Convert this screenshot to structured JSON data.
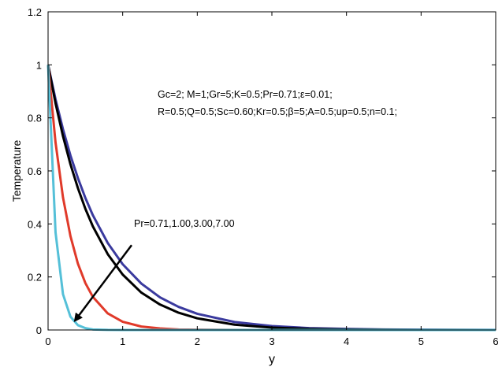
{
  "chart_data": {
    "type": "line",
    "title": "",
    "xlabel": "y",
    "ylabel": "Temperature",
    "xlim": [
      0,
      6
    ],
    "ylim": [
      0,
      1.2
    ],
    "xticks": [
      0,
      1,
      2,
      3,
      4,
      5,
      6
    ],
    "xtick_labels": [
      "0",
      "1",
      "2",
      "3",
      "4",
      "5",
      "6"
    ],
    "yticks": [
      0,
      0.2,
      0.4,
      0.6,
      0.8,
      1.0,
      1.2
    ],
    "ytick_labels": [
      "0",
      "0.2",
      "0.4",
      "0.6",
      "0.8",
      "1",
      "1.2"
    ],
    "grid": false,
    "legend": "none",
    "x": [
      0,
      0.1,
      0.2,
      0.3,
      0.4,
      0.5,
      0.6,
      0.8,
      1.0,
      1.25,
      1.5,
      1.75,
      2.0,
      2.5,
      3.0,
      3.5,
      4.0,
      4.5,
      5.0,
      5.5,
      6.0
    ],
    "series": [
      {
        "color": "#3a3a9e",
        "values": [
          1.0,
          0.87,
          0.757,
          0.658,
          0.573,
          0.498,
          0.433,
          0.328,
          0.248,
          0.175,
          0.123,
          0.087,
          0.061,
          0.03,
          0.015,
          0.007,
          0.004,
          0.002,
          0.001,
          0.0005,
          0.0002
        ]
      },
      {
        "color": "#000000",
        "values": [
          1.0,
          0.855,
          0.731,
          0.625,
          0.535,
          0.457,
          0.391,
          0.286,
          0.209,
          0.141,
          0.096,
          0.065,
          0.044,
          0.02,
          0.009,
          0.004,
          0.002,
          0.001,
          0.0004,
          0.0002,
          0.0001
        ]
      },
      {
        "color": "#e03a2a",
        "values": [
          1.0,
          0.707,
          0.5,
          0.354,
          0.25,
          0.177,
          0.125,
          0.0625,
          0.031,
          0.013,
          0.006,
          0.002,
          0.001,
          0.0002,
          0.0,
          0.0,
          0.0,
          0.0,
          0.0,
          0.0,
          0.0
        ]
      },
      {
        "color": "#55c0d8",
        "values": [
          1.0,
          0.368,
          0.135,
          0.05,
          0.018,
          0.007,
          0.002,
          0.0003,
          0.0,
          0.0,
          0.0,
          0.0,
          0.0,
          0.0,
          0.0,
          0.0,
          0.0,
          0.0,
          0.0,
          0.0,
          0.0
        ]
      }
    ],
    "annotations": {
      "params_line1": "Gc=2; M=1;Gr=5;K=0.5;Pr=0.71;ε=0.01;",
      "params_line2": "R=0.5;Q=0.5;Sc=0.60;Kr=0.5;β=5;A=0.5;up=0.5;n=0.1;",
      "arrow_label": "Pr=0.71,1.00,3.00,7.00",
      "arrow": {
        "from": [
          1.12,
          0.32
        ],
        "to": [
          0.36,
          0.035
        ]
      }
    }
  }
}
